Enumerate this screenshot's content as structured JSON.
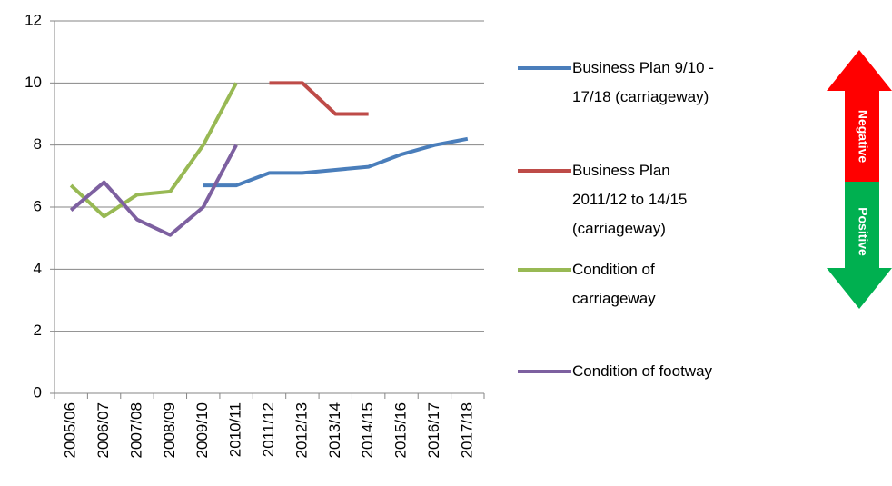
{
  "chart_data": {
    "type": "line",
    "categories": [
      "2005/06",
      "2006/07",
      "2007/08",
      "2008/09",
      "2009/10",
      "2010/11",
      "2011/12",
      "2012/13",
      "2013/14",
      "2014/15",
      "2015/16",
      "2016/17",
      "2017/18"
    ],
    "series": [
      {
        "name": "Business Plan 9/10 - 17/18 (carriageway)",
        "color": "#4a7ebb",
        "values": [
          null,
          null,
          null,
          null,
          6.7,
          6.7,
          7.1,
          7.1,
          7.2,
          7.3,
          7.7,
          8.0,
          8.2
        ]
      },
      {
        "name": "Business Plan 2011/12 to 14/15 (carriageway)",
        "color": "#be4b48",
        "values": [
          null,
          null,
          null,
          null,
          null,
          null,
          10,
          10,
          9,
          9,
          null,
          null,
          null
        ]
      },
      {
        "name": "Condition of carriageway",
        "color": "#98b954",
        "values": [
          6.7,
          5.7,
          6.4,
          6.5,
          8.0,
          10.0,
          null,
          null,
          null,
          null,
          null,
          null,
          null
        ]
      },
      {
        "name": "Condition of footway",
        "color": "#7d60a0",
        "values": [
          5.9,
          6.8,
          5.6,
          5.1,
          6.0,
          8.0,
          null,
          null,
          null,
          null,
          null,
          null,
          null
        ]
      }
    ],
    "ylim": [
      0,
      12
    ],
    "yticks": [
      0,
      2,
      4,
      6,
      8,
      10,
      12
    ],
    "grid": true,
    "legend": "right",
    "indicator": {
      "top": "Negative",
      "bottom": "Positive"
    }
  }
}
